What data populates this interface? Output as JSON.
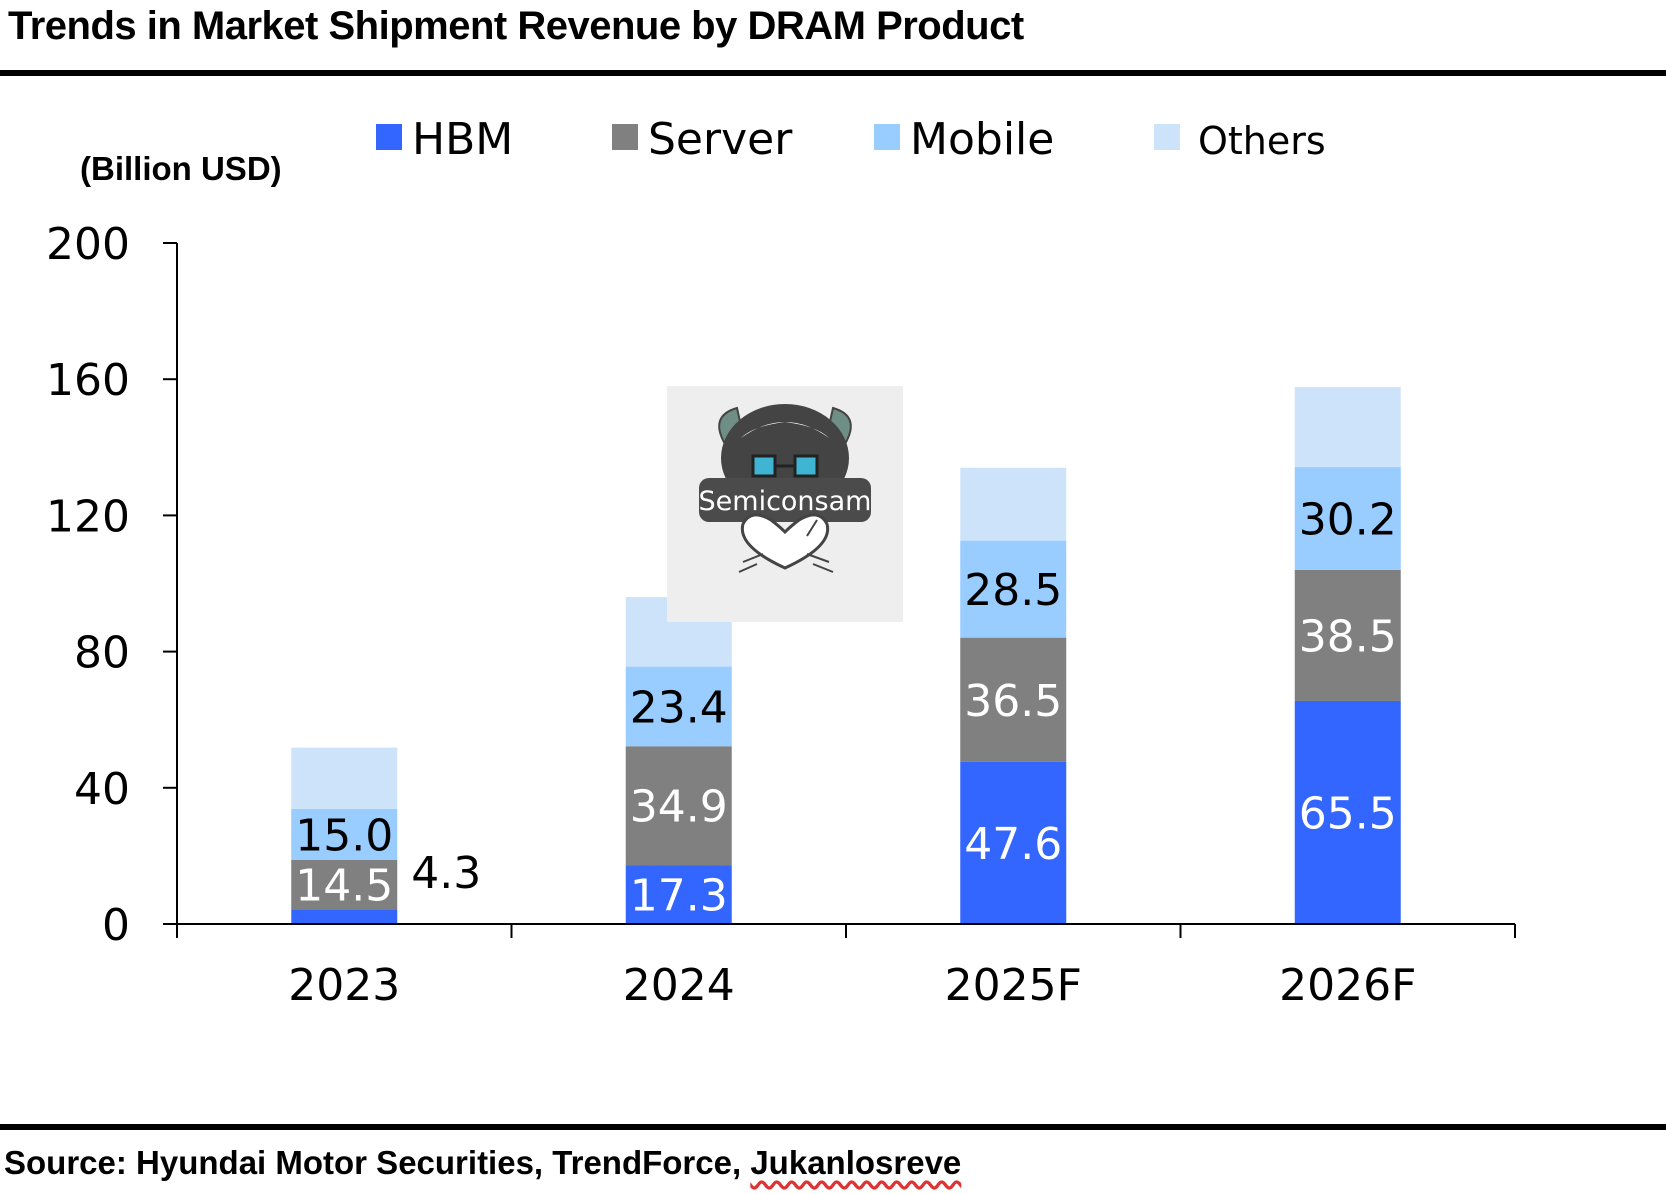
{
  "title": "Trends in Market Shipment Revenue by DRAM Product",
  "unit_label": "(Billion USD)",
  "source": {
    "prefix": "Source: Hyundai Motor Securities, TrendForce, ",
    "last": "Jukanlosreve"
  },
  "watermark_text": "Semiconsam",
  "colors": {
    "HBM": "#3366ff",
    "Server": "#808080",
    "Mobile": "#99ccff",
    "Others": "#cce3fa"
  },
  "chart_data": {
    "type": "bar",
    "stacked": true,
    "title": "Trends in Market Shipment Revenue by DRAM Product",
    "ylabel": "(Billion USD)",
    "xlabel": "",
    "ylim": [
      0,
      200
    ],
    "yticks": [
      0,
      40,
      80,
      120,
      160,
      200
    ],
    "categories": [
      "2023",
      "2024",
      "2025F",
      "2026F"
    ],
    "legend_position": "top",
    "grid": false,
    "series": [
      {
        "name": "HBM",
        "values": [
          4.3,
          17.3,
          47.6,
          65.5
        ],
        "labels": [
          "4.3",
          "17.3",
          "47.6",
          "65.5"
        ]
      },
      {
        "name": "Server",
        "values": [
          14.5,
          34.9,
          36.5,
          38.5
        ],
        "labels": [
          "14.5",
          "34.9",
          "36.5",
          "38.5"
        ]
      },
      {
        "name": "Mobile",
        "values": [
          15.0,
          23.4,
          28.5,
          30.2
        ],
        "labels": [
          "15.0",
          "23.4",
          "28.5",
          "30.2"
        ]
      },
      {
        "name": "Others",
        "values": [
          18.0,
          20.4,
          21.4,
          23.5
        ],
        "labels": [
          "",
          "",
          "",
          ""
        ]
      }
    ]
  }
}
